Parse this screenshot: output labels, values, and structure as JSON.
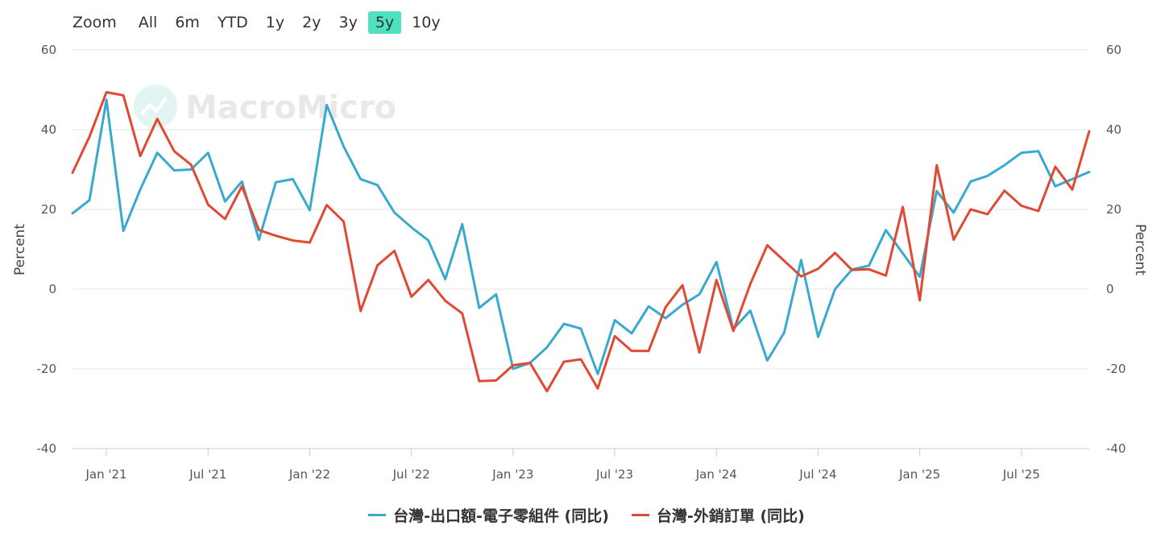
{
  "zoom": {
    "label": "Zoom",
    "buttons": [
      "All",
      "6m",
      "YTD",
      "1y",
      "2y",
      "3y",
      "5y",
      "10y"
    ],
    "active": "5y"
  },
  "watermark": "MacroMicro",
  "chart_data": {
    "type": "line",
    "ylabel_left": "Percent",
    "ylabel_right": "Percent",
    "ylim": [
      -40,
      60
    ],
    "yticks": [
      -40,
      -20,
      0,
      20,
      40,
      60
    ],
    "xticks": [
      "Jan '21",
      "Jul '21",
      "Jan '22",
      "Jul '22",
      "Jan '23",
      "Jul '23",
      "Jan '24",
      "Jul '24",
      "Jan '25",
      "Jul '25"
    ],
    "x_start": "2020-11",
    "x_end": "2025-11",
    "grid": true,
    "legend_position": "bottom-center",
    "series": [
      {
        "name": "台灣-出口額-電子零組件 (同比)",
        "color": "#3aa9d0",
        "values": [
          19,
          22.3,
          47.5,
          14.6,
          25,
          34.2,
          29.8,
          30,
          34.2,
          22,
          27,
          12.4,
          26.8,
          27.6,
          19.8,
          46.2,
          35.8,
          27.6,
          26.1,
          19.2,
          15.5,
          12.2,
          2.5,
          16.3,
          -4.7,
          -1.3,
          -20,
          -18.5,
          -14.6,
          -8.7,
          -9.9,
          -21.3,
          -7.8,
          -11.1,
          -4.3,
          -7.3,
          -3.9,
          -1.3,
          6.8,
          -10,
          -5.4,
          -17.9,
          -10.9,
          7.3,
          -12,
          0,
          4.9,
          5.9,
          14.8,
          9,
          3.1,
          24.6,
          19.2,
          27,
          28.4,
          31.1,
          34.2,
          34.6,
          25.8,
          27.6,
          29.4
        ]
      },
      {
        "name": "台灣-外銷訂單 (同比)",
        "color": "#e04a33",
        "values": [
          29.2,
          38.2,
          49.4,
          48.6,
          33.4,
          42.7,
          34.6,
          31.2,
          21.2,
          17.6,
          25.8,
          14.8,
          13.4,
          12.2,
          11.7,
          21.1,
          17,
          -5.5,
          6,
          9.6,
          -1.9,
          2.3,
          -2.9,
          -6.1,
          -23.1,
          -22.9,
          -19.1,
          -18.5,
          -25.6,
          -18.2,
          -17.6,
          -24.9,
          -11.8,
          -15.5,
          -15.5,
          -4.5,
          1,
          -15.9,
          2.3,
          -10.5,
          1.3,
          11,
          7.1,
          3.2,
          5.1,
          9.1,
          4.8,
          5,
          3.4,
          20.6,
          -2.8,
          31.1,
          12.4,
          20,
          18.8,
          24.7,
          20.9,
          19.6,
          30.7,
          25,
          39.6
        ]
      }
    ]
  }
}
